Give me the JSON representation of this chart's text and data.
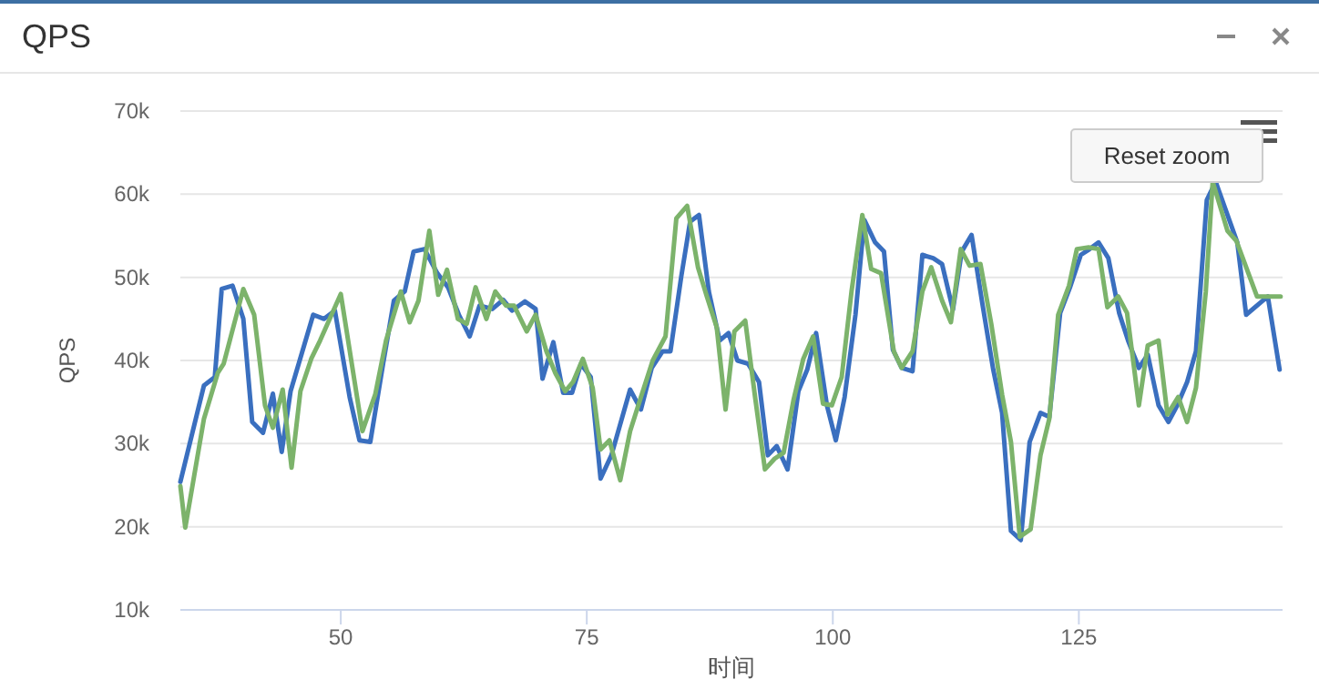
{
  "chart_data": {
    "type": "line",
    "title": "QPS",
    "xlabel": "时间",
    "ylabel": "QPS",
    "grid": "y",
    "xlim": [
      33.7,
      145.7
    ],
    "ylim": [
      10000,
      70000
    ],
    "xticks": [
      50,
      75,
      100,
      125
    ],
    "yticks": [
      {
        "value": 10000,
        "label": "10k"
      },
      {
        "value": 20000,
        "label": "20k"
      },
      {
        "value": 30000,
        "label": "30k"
      },
      {
        "value": 40000,
        "label": "40k"
      },
      {
        "value": 50000,
        "label": "50k"
      },
      {
        "value": 60000,
        "label": "60k"
      },
      {
        "value": 70000,
        "label": "70k"
      }
    ],
    "annotations": [
      "Reset zoom"
    ],
    "series": [
      {
        "color": "#3a6fbf",
        "x": [
          33.7,
          36.1,
          37.2,
          37.9,
          39.0,
          40.1,
          41.0,
          42.1,
          43.1,
          44.0,
          44.9,
          47.2,
          48.3,
          49.4,
          50.9,
          51.9,
          53.0,
          54.3,
          55.4,
          56.5,
          57.4,
          58.5,
          59.8,
          60.9,
          62.0,
          63.1,
          64.1,
          65.4,
          66.5,
          67.4,
          68.7,
          69.8,
          70.5,
          71.6,
          72.6,
          73.5,
          74.4,
          75.4,
          76.4,
          77.5,
          79.4,
          80.5,
          81.6,
          82.7,
          83.5,
          84.6,
          85.5,
          86.4,
          87.4,
          88.5,
          89.4,
          90.3,
          91.4,
          92.5,
          93.4,
          94.3,
          95.4,
          96.5,
          97.4,
          98.3,
          99.4,
          100.3,
          101.2,
          102.3,
          103.2,
          104.3,
          105.2,
          106.1,
          107.0,
          108.1,
          109.1,
          110.2,
          111.1,
          112.2,
          113.1,
          114.1,
          115.2,
          116.3,
          117.2,
          118.1,
          119.1,
          120.0,
          121.1,
          122.0,
          123.1,
          124.1,
          125.2,
          126.1,
          127.0,
          128.0,
          129.1,
          130.0,
          131.1,
          132.0,
          133.1,
          134.1,
          135.0,
          136.0,
          136.9,
          138.0,
          138.9,
          141.1,
          142.0,
          144.2,
          145.4
        ],
        "values": [
          25400,
          37000,
          38000,
          48600,
          49000,
          45000,
          32600,
          31300,
          36000,
          29000,
          36300,
          45500,
          45000,
          46000,
          35600,
          30400,
          30200,
          39600,
          47200,
          48300,
          53100,
          53400,
          50500,
          48800,
          45500,
          42900,
          46600,
          46200,
          47300,
          46000,
          47100,
          46200,
          37800,
          42200,
          36100,
          36100,
          39600,
          38000,
          25800,
          28600,
          36500,
          34100,
          39100,
          41100,
          41100,
          50100,
          56700,
          57500,
          48300,
          42400,
          43300,
          40000,
          39600,
          37400,
          28600,
          29700,
          26900,
          36300,
          38900,
          43300,
          34600,
          30400,
          35600,
          45500,
          56900,
          54200,
          53100,
          41300,
          39100,
          38700,
          52700,
          52300,
          51600,
          46100,
          53100,
          55100,
          46800,
          38900,
          33700,
          19500,
          18400,
          30200,
          33700,
          33200,
          45700,
          48800,
          52700,
          53400,
          54200,
          52300,
          45700,
          42400,
          39100,
          40700,
          34600,
          32600,
          34600,
          37400,
          41100,
          59300,
          61500,
          54200,
          45500,
          47700,
          38900
        ]
      },
      {
        "color": "#7cb36b",
        "x": [
          33.7,
          34.2,
          36.1,
          37.5,
          38.1,
          40.1,
          41.2,
          42.3,
          43.1,
          44.1,
          45.0,
          45.9,
          47.0,
          47.9,
          50.0,
          52.2,
          53.5,
          54.6,
          56.1,
          57.0,
          57.9,
          59.0,
          59.9,
          60.8,
          61.9,
          62.8,
          63.7,
          64.8,
          65.7,
          66.8,
          67.6,
          68.9,
          69.8,
          70.9,
          71.8,
          72.8,
          73.6,
          74.6,
          75.6,
          76.4,
          77.3,
          78.4,
          79.4,
          80.5,
          81.7,
          83.0,
          84.1,
          85.2,
          86.3,
          87.2,
          88.2,
          89.1,
          90.0,
          91.1,
          92.1,
          93.1,
          94.1,
          95.0,
          96.0,
          97.0,
          98.0,
          99.0,
          99.9,
          100.9,
          101.9,
          103.0,
          103.9,
          104.9,
          106.2,
          107.0,
          108.1,
          109.1,
          110.0,
          111.1,
          112.0,
          113.0,
          113.9,
          115.0,
          116.1,
          117.2,
          118.1,
          119.0,
          120.1,
          121.1,
          122.0,
          122.9,
          124.0,
          124.8,
          126.0,
          127.0,
          127.9,
          129.0,
          129.9,
          131.1,
          132.0,
          133.1,
          134.0,
          135.1,
          136.0,
          136.9,
          137.9,
          138.6,
          140.1,
          141.0,
          143.1,
          145.5
        ],
        "values": [
          24900,
          19900,
          33000,
          38500,
          39600,
          48600,
          45500,
          34600,
          31900,
          36500,
          27100,
          36300,
          40200,
          42400,
          48000,
          31500,
          35900,
          42400,
          48300,
          44600,
          47200,
          55600,
          47900,
          50900,
          45000,
          44400,
          48800,
          45000,
          48300,
          46600,
          46600,
          43500,
          45500,
          41100,
          38500,
          36300,
          37400,
          40200,
          36700,
          29300,
          30400,
          25600,
          31500,
          35600,
          40000,
          42900,
          57100,
          58600,
          51200,
          47700,
          44000,
          34100,
          43500,
          44800,
          35600,
          26900,
          28200,
          28900,
          35200,
          40200,
          42900,
          34800,
          34600,
          38000,
          48300,
          57500,
          51000,
          50500,
          41100,
          39100,
          41100,
          48300,
          51200,
          47200,
          44600,
          53400,
          51400,
          51600,
          44400,
          35900,
          30200,
          18800,
          19700,
          28600,
          33000,
          45500,
          49000,
          53400,
          53600,
          53400,
          46400,
          47700,
          45700,
          34600,
          41800,
          42400,
          33500,
          35600,
          32600,
          36700,
          48300,
          61500,
          55600,
          54400,
          47700,
          47700
        ]
      }
    ]
  }
}
